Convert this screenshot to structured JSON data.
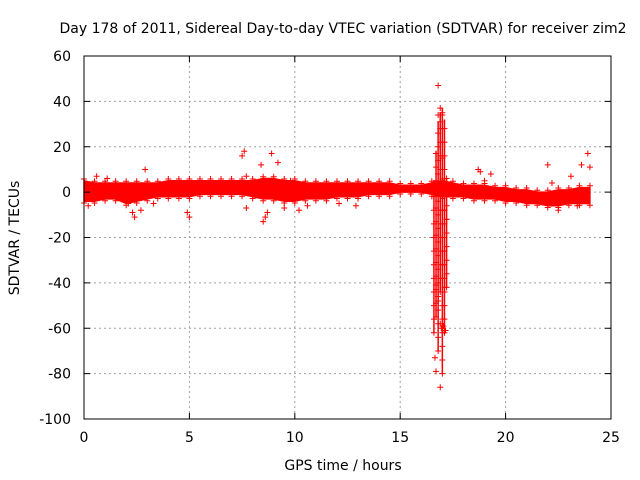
{
  "chart_data": {
    "type": "scatter",
    "title": "Day 178 of 2011, Sidereal Day-to-day VTEC variation (SDTVAR) for receiver zim2",
    "xlabel": "GPS time / hours",
    "ylabel": "SDTVAR / TECUs",
    "xlim": [
      0,
      25
    ],
    "ylim": [
      -100,
      60
    ],
    "xticks": [
      0,
      5,
      10,
      15,
      20,
      25
    ],
    "yticks": [
      -100,
      -80,
      -60,
      -40,
      -20,
      0,
      20,
      40,
      60
    ],
    "grid": true,
    "marker": "+",
    "color": "#ff0000",
    "band": {
      "x": [
        0.0,
        0.5,
        1.0,
        1.5,
        2.0,
        2.5,
        3.0,
        3.5,
        4.0,
        4.5,
        5.0,
        5.5,
        6.0,
        6.5,
        7.0,
        7.5,
        8.0,
        8.5,
        9.0,
        9.5,
        10.0,
        10.5,
        11.0,
        11.5,
        12.0,
        12.5,
        13.0,
        13.5,
        14.0,
        14.5,
        15.0,
        15.5,
        16.0,
        16.5,
        17.0,
        17.5,
        18.0,
        18.5,
        19.0,
        19.5,
        20.0,
        20.5,
        21.0,
        21.5,
        22.0,
        22.5,
        23.0,
        23.5,
        24.0
      ],
      "low": [
        -4,
        -4,
        -3,
        -3,
        -5,
        -4,
        -3,
        -2,
        -2,
        -2,
        -2,
        -1,
        -1,
        -1,
        -1,
        -1,
        -2,
        -3,
        -3,
        -4,
        -4,
        -3,
        -3,
        -3,
        -2,
        -2,
        -2,
        -1,
        -1,
        -1,
        0,
        0,
        0,
        -1,
        -2,
        -2,
        -2,
        -3,
        -3,
        -3,
        -4,
        -4,
        -5,
        -5,
        -6,
        -6,
        -5,
        -5,
        -5
      ],
      "high": [
        5,
        4,
        4,
        4,
        4,
        4,
        4,
        4,
        5,
        5,
        5,
        5,
        5,
        5,
        5,
        5,
        5,
        6,
        6,
        5,
        5,
        4,
        4,
        4,
        4,
        4,
        4,
        4,
        4,
        4,
        3,
        3,
        3,
        4,
        5,
        4,
        3,
        3,
        3,
        2,
        2,
        1,
        1,
        0,
        0,
        1,
        1,
        2,
        2
      ]
    },
    "outliers": {
      "x": [
        0.2,
        0.6,
        1.1,
        2.1,
        2.3,
        2.4,
        2.7,
        2.9,
        3.3,
        4.9,
        5.0,
        5.3,
        7.5,
        7.6,
        7.7,
        7.7,
        8.4,
        8.5,
        8.6,
        8.7,
        8.9,
        9.2,
        9.5,
        9.8,
        10.2,
        10.6,
        12.1,
        12.9,
        16.8,
        16.8,
        16.9,
        16.9,
        17.0,
        17.0,
        17.0,
        17.1,
        17.1,
        17.2,
        16.7,
        16.8,
        16.9,
        16.95,
        17.05,
        17.1,
        17.15,
        16.9,
        16.65,
        16.7,
        18.7,
        18.8,
        19.0,
        19.3,
        22.0,
        22.2,
        22.5,
        23.1,
        23.4,
        23.6,
        23.9,
        24.0
      ],
      "y": [
        -6,
        7,
        6,
        -5,
        -9,
        -11,
        -8,
        10,
        -5,
        -9,
        -11,
        4,
        16,
        18,
        7,
        -7,
        12,
        -13,
        -11,
        -9,
        17,
        13,
        -7,
        5,
        -8,
        -6,
        -5,
        -6,
        47,
        34,
        31,
        37,
        35,
        22,
        15,
        3,
        -8,
        -12,
        -41,
        -48,
        -58,
        -60,
        -59,
        -42,
        -61,
        -86,
        -73,
        -79,
        10,
        9,
        5,
        8,
        12,
        4,
        -8,
        7,
        -6,
        12,
        17,
        11
      ]
    },
    "spike": {
      "x": [
        16.6,
        16.7,
        16.8,
        16.9,
        17.0,
        17.1,
        17.2
      ],
      "low": [
        -62,
        -55,
        -70,
        -44,
        -80,
        -62,
        -42
      ],
      "high": [
        5,
        18,
        31,
        35,
        37,
        32,
        6
      ]
    }
  }
}
